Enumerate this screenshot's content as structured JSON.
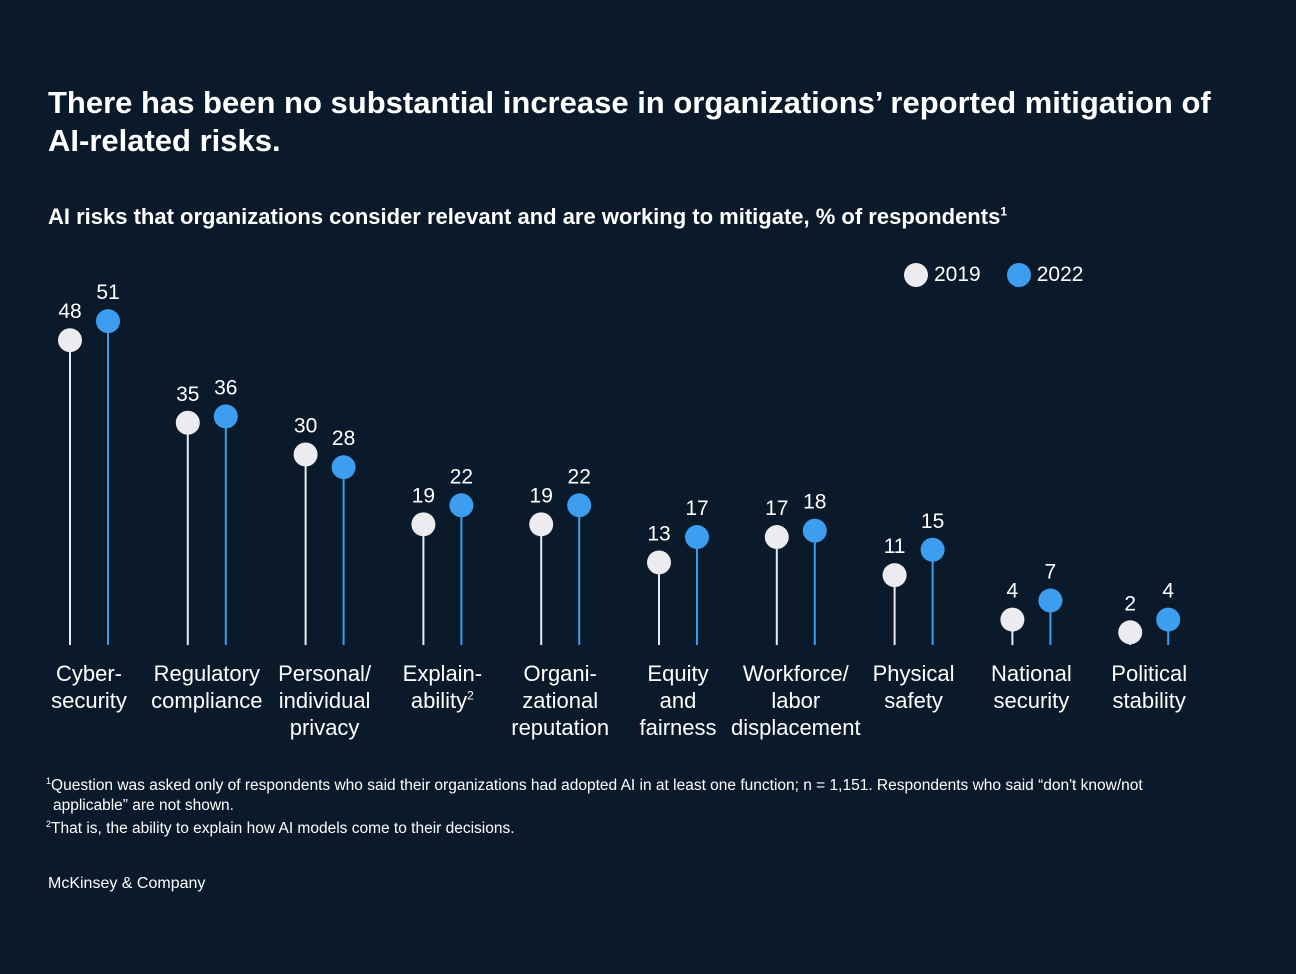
{
  "title": "There has been no substantial increase in organizations’ reported mitigation of AI-related risks.",
  "subtitle": {
    "bold": "AI risks that organizations consider relevant and are working to mitigate,",
    "regular": " % of respondents",
    "sup": "1"
  },
  "colors": {
    "background": "#0b1a2b",
    "series_2019": "#ecebef",
    "series_2022": "#3d9ef0"
  },
  "chart_data": {
    "type": "lollipop",
    "ylim": [
      0,
      55
    ],
    "categories": [
      "Cyber-\nsecurity",
      "Regulatory\ncompliance",
      "Personal/\nindividual\nprivacy",
      "Explain-\nability",
      "Organi-\nzational\nreputation",
      "Equity\nand\nfairness",
      "Workforce/\nlabor\ndisplacement",
      "Physical\nsafety",
      "National\nsecurity",
      "Political\nstability"
    ],
    "category_sups": [
      "",
      "",
      "",
      "2",
      "",
      "",
      "",
      "",
      "",
      ""
    ],
    "series": [
      {
        "name": "2019",
        "values": [
          48,
          35,
          30,
          19,
          19,
          13,
          17,
          11,
          4,
          2
        ]
      },
      {
        "name": "2022",
        "values": [
          51,
          36,
          28,
          22,
          22,
          17,
          18,
          15,
          7,
          4
        ]
      }
    ],
    "legend": [
      "2019",
      "2022"
    ]
  },
  "footnotes": [
    {
      "sup": "1",
      "text": "Question was asked only of respondents who said their organizations had adopted AI in at least one function; n = 1,151. Respondents who said “don't know/not"
    },
    {
      "sup": "",
      "text": "applicable” are not shown.",
      "indent": true
    },
    {
      "sup": "2",
      "text": "That is, the ability to explain how AI models come to their decisions."
    }
  ],
  "source": "McKinsey & Company"
}
